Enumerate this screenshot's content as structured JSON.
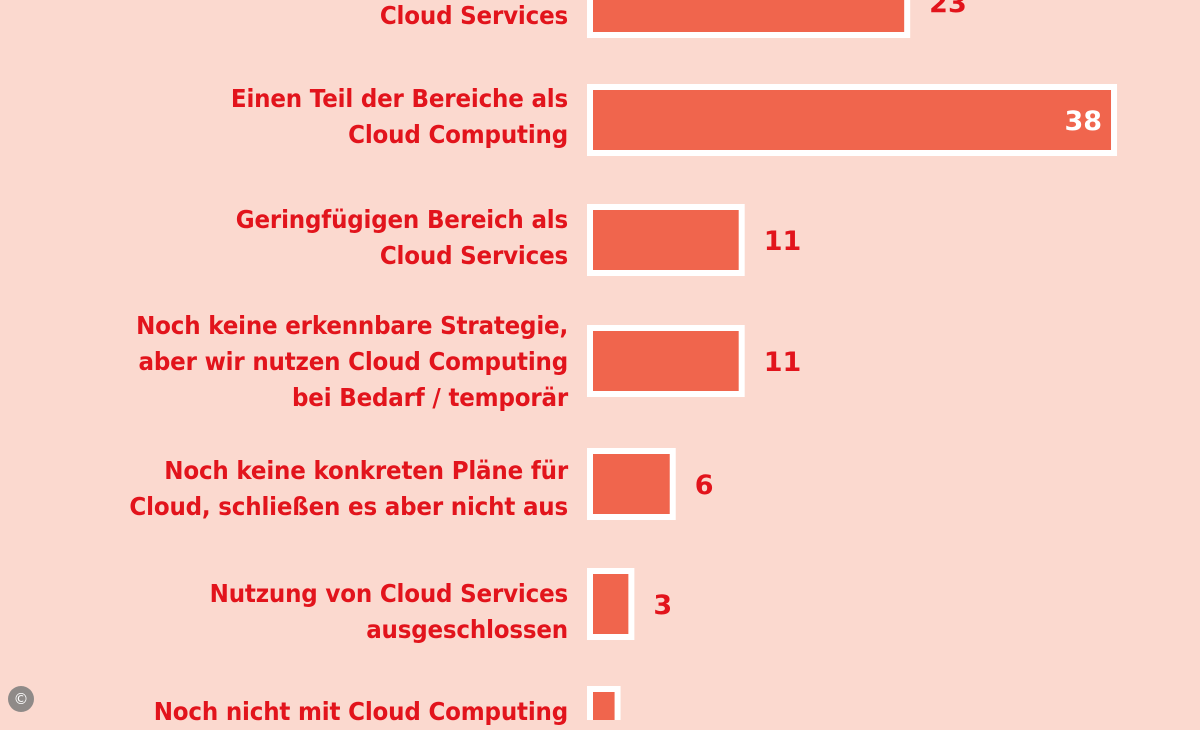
{
  "chart_data": {
    "type": "bar",
    "orientation": "horizontal",
    "categories": [
      [
        "Cloud Services"
      ],
      [
        "Einen Teil der Bereiche als",
        "Cloud Computing"
      ],
      [
        "Geringfügigen Bereich als",
        "Cloud Services"
      ],
      [
        "Noch keine erkennbare Strategie,",
        "aber wir nutzen Cloud Computing",
        "bei Bedarf / temporär"
      ],
      [
        "Noch keine konkreten Pläne für",
        "Cloud, schließen es aber nicht aus"
      ],
      [
        "Nutzung von Cloud Services",
        "ausgeschlossen"
      ],
      [
        "Noch nicht mit Cloud Computing"
      ]
    ],
    "values": [
      23,
      38,
      11,
      11,
      6,
      3,
      2
    ],
    "value_labels": [
      "23",
      "38",
      "11",
      "11",
      "6",
      "3",
      ""
    ],
    "bar_color": "#f0654d",
    "bar_border_color": "#ffffff",
    "label_color": "#e2141c",
    "value_label_color": "#e2141c",
    "value_label_inside_color": "#ffffff",
    "grid": false,
    "legend": "none"
  },
  "copyright_symbol": "©"
}
